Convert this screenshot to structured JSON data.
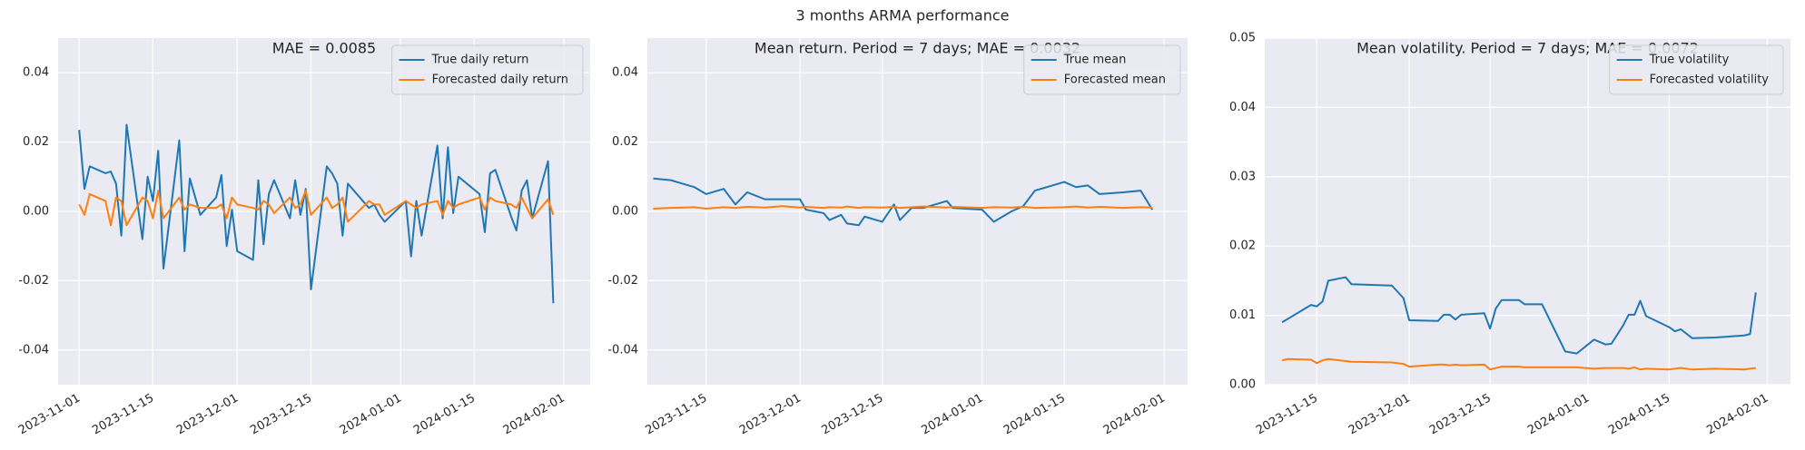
{
  "title": "3 months ARMA performance",
  "chart_data": [
    {
      "type": "line",
      "title": "MAE = 0.0085",
      "x": [
        "2023-11-01",
        "2023-11-02",
        "2023-11-03",
        "2023-11-06",
        "2023-11-07",
        "2023-11-08",
        "2023-11-09",
        "2023-11-10",
        "2023-11-13",
        "2023-11-14",
        "2023-11-15",
        "2023-11-16",
        "2023-11-17",
        "2023-11-20",
        "2023-11-21",
        "2023-11-22",
        "2023-11-24",
        "2023-11-27",
        "2023-11-28",
        "2023-11-29",
        "2023-11-30",
        "2023-12-01",
        "2023-12-04",
        "2023-12-05",
        "2023-12-06",
        "2023-12-07",
        "2023-12-08",
        "2023-12-11",
        "2023-12-12",
        "2023-12-13",
        "2023-12-14",
        "2023-12-15",
        "2023-12-18",
        "2023-12-19",
        "2023-12-20",
        "2023-12-21",
        "2023-12-22",
        "2023-12-26",
        "2023-12-27",
        "2023-12-28",
        "2023-12-29",
        "2024-01-02",
        "2024-01-03",
        "2024-01-04",
        "2024-01-05",
        "2024-01-08",
        "2024-01-09",
        "2024-01-10",
        "2024-01-11",
        "2024-01-12",
        "2024-01-16",
        "2024-01-17",
        "2024-01-18",
        "2024-01-19",
        "2024-01-22",
        "2024-01-23",
        "2024-01-24",
        "2024-01-25",
        "2024-01-26",
        "2024-01-29",
        "2024-01-30"
      ],
      "series": [
        {
          "name": "True daily return",
          "color": "#1f77b4",
          "values": [
            0.0235,
            0.0065,
            0.013,
            0.011,
            0.0115,
            0.008,
            -0.007,
            0.025,
            -0.008,
            0.01,
            0.003,
            0.0175,
            -0.0165,
            0.0205,
            -0.0115,
            0.0095,
            -0.001,
            0.004,
            0.0105,
            -0.01,
            0.0005,
            -0.0115,
            -0.014,
            0.009,
            -0.0095,
            0.005,
            0.009,
            -0.002,
            0.009,
            -0.001,
            0.0065,
            -0.0225,
            0.013,
            0.011,
            0.008,
            -0.007,
            0.008,
            0.001,
            0.002,
            -0.001,
            -0.003,
            0.003,
            -0.013,
            0.003,
            -0.007,
            0.019,
            -0.002,
            0.0185,
            -0.0005,
            0.01,
            0.005,
            -0.006,
            0.011,
            0.012,
            -0.0015,
            -0.0055,
            0.006,
            0.009,
            -0.002,
            0.0145,
            -0.0265
          ]
        },
        {
          "name": "Forecasted daily return",
          "color": "#ff7f0e",
          "values": [
            0.002,
            -0.001,
            0.005,
            0.003,
            -0.004,
            0.004,
            0.003,
            -0.004,
            0.004,
            0.003,
            -0.002,
            0.006,
            -0.002,
            0.004,
            0.0005,
            0.002,
            0.001,
            0.001,
            0.002,
            -0.002,
            0.004,
            0.002,
            0.001,
            0.0005,
            0.003,
            0.002,
            -0.0005,
            0.004,
            0.001,
            0.002,
            0.006,
            -0.001,
            0.004,
            0.001,
            0.002,
            0.004,
            -0.003,
            0.003,
            0.002,
            0.002,
            -0.001,
            0.003,
            0.002,
            0.001,
            0.002,
            0.003,
            -0.001,
            0.003,
            0.001,
            0.002,
            0.004,
            0.0005,
            0.004,
            0.003,
            0.002,
            0.001,
            0.004,
            0.001,
            -0.002,
            0.0035,
            -0.001
          ]
        }
      ],
      "xlim": [
        "2023-10-28",
        "2024-02-06"
      ],
      "xticks": [
        "2023-11-01",
        "2023-11-15",
        "2023-12-01",
        "2023-12-15",
        "2024-01-01",
        "2024-01-15",
        "2024-02-01"
      ],
      "ylim": [
        -0.05,
        0.05
      ],
      "yticks": [
        -0.04,
        -0.02,
        {
          "value": 0,
          "label": "0.00"
        },
        0.02,
        0.04
      ],
      "grid": true,
      "legend": "upper right"
    },
    {
      "type": "line",
      "title": "Mean return. Period = 7 days; MAE = 0.0032",
      "x": [
        "2023-11-06",
        "2023-11-09",
        "2023-11-13",
        "2023-11-15",
        "2023-11-18",
        "2023-11-20",
        "2023-11-22",
        "2023-11-25",
        "2023-11-28",
        "2023-12-01",
        "2023-12-02",
        "2023-12-05",
        "2023-12-06",
        "2023-12-08",
        "2023-12-09",
        "2023-12-11",
        "2023-12-12",
        "2023-12-15",
        "2023-12-17",
        "2023-12-18",
        "2023-12-20",
        "2023-12-22",
        "2023-12-26",
        "2023-12-27",
        "2024-01-01",
        "2024-01-03",
        "2024-01-06",
        "2024-01-08",
        "2024-01-10",
        "2024-01-15",
        "2024-01-17",
        "2024-01-19",
        "2024-01-21",
        "2024-01-25",
        "2024-01-28",
        "2024-01-30"
      ],
      "series": [
        {
          "name": "True mean",
          "color": "#1f77b4",
          "values": [
            0.0095,
            0.009,
            0.007,
            0.005,
            0.0065,
            0.002,
            0.0055,
            0.0035,
            0.0035,
            0.0035,
            0.0005,
            -0.0005,
            -0.0025,
            -0.001,
            -0.0035,
            -0.004,
            -0.0015,
            -0.003,
            0.002,
            -0.0025,
            0.001,
            0.001,
            0.003,
            0.001,
            0.0005,
            -0.003,
            0.0,
            0.0015,
            0.006,
            0.0085,
            0.007,
            0.0075,
            0.005,
            0.0055,
            0.006,
            0.0005
          ]
        },
        {
          "name": "Forecasted mean",
          "color": "#ff7f0e",
          "values": [
            0.0008,
            0.001,
            0.0012,
            0.0008,
            0.0012,
            0.001,
            0.0013,
            0.0011,
            0.0015,
            0.0011,
            0.0013,
            0.001,
            0.0012,
            0.0011,
            0.0014,
            0.001,
            0.0012,
            0.0011,
            0.0013,
            0.001,
            0.0012,
            0.0014,
            0.0011,
            0.0013,
            0.001,
            0.0012,
            0.0011,
            0.0013,
            0.001,
            0.0012,
            0.0014,
            0.0011,
            0.0013,
            0.001,
            0.0012,
            0.0011
          ]
        }
      ],
      "xlim": [
        "2023-11-05",
        "2024-02-05"
      ],
      "xticks": [
        "2023-11-15",
        "2023-12-01",
        "2023-12-15",
        "2024-01-01",
        "2024-01-15",
        "2024-02-01"
      ],
      "ylim": [
        -0.05,
        0.05
      ],
      "yticks": [
        -0.04,
        -0.02,
        {
          "value": 0,
          "label": "0.00"
        },
        0.02,
        0.04
      ],
      "grid": true,
      "legend": "upper right"
    },
    {
      "type": "line",
      "title": "Mean volatility. Period = 7 days; MAE = 0.0072",
      "x": [
        "2023-11-09",
        "2023-11-10",
        "2023-11-14",
        "2023-11-15",
        "2023-11-16",
        "2023-11-17",
        "2023-11-20",
        "2023-11-21",
        "2023-11-28",
        "2023-11-30",
        "2023-12-01",
        "2023-12-06",
        "2023-12-07",
        "2023-12-08",
        "2023-12-09",
        "2023-12-10",
        "2023-12-14",
        "2023-12-15",
        "2023-12-16",
        "2023-12-17",
        "2023-12-20",
        "2023-12-21",
        "2023-12-24",
        "2023-12-28",
        "2023-12-30",
        "2024-01-02",
        "2024-01-04",
        "2024-01-05",
        "2024-01-07",
        "2024-01-08",
        "2024-01-09",
        "2024-01-10",
        "2024-01-11",
        "2024-01-15",
        "2024-01-16",
        "2024-01-17",
        "2024-01-19",
        "2024-01-23",
        "2024-01-28",
        "2024-01-29",
        "2024-01-30"
      ],
      "series": [
        {
          "name": "True volatility",
          "color": "#1f77b4",
          "values": [
            0.009,
            0.0095,
            0.0115,
            0.0113,
            0.012,
            0.015,
            0.0155,
            0.0145,
            0.0143,
            0.0125,
            0.0093,
            0.0092,
            0.0101,
            0.0101,
            0.0094,
            0.0101,
            0.0103,
            0.0081,
            0.011,
            0.0122,
            0.0122,
            0.0116,
            0.0116,
            0.0048,
            0.0045,
            0.0065,
            0.0058,
            0.0059,
            0.0085,
            0.0101,
            0.0101,
            0.0121,
            0.0099,
            0.0083,
            0.0077,
            0.008,
            0.0067,
            0.0068,
            0.0071,
            0.0073,
            0.0133
          ]
        },
        {
          "name": "Forecasted volatility",
          "color": "#ff7f0e",
          "values": [
            0.0035,
            0.0037,
            0.0036,
            0.0031,
            0.0035,
            0.0037,
            0.0034,
            0.0033,
            0.0032,
            0.003,
            0.0026,
            0.0029,
            0.0029,
            0.0028,
            0.0029,
            0.0028,
            0.0029,
            0.0022,
            0.0024,
            0.0026,
            0.0026,
            0.0025,
            0.0025,
            0.0025,
            0.0025,
            0.0023,
            0.0024,
            0.0024,
            0.0024,
            0.0023,
            0.0025,
            0.0022,
            0.0023,
            0.0022,
            0.0023,
            0.0024,
            0.0022,
            0.0023,
            0.0022,
            0.0023,
            0.0024
          ]
        }
      ],
      "xlim": [
        "2023-11-06",
        "2024-02-05"
      ],
      "xticks": [
        "2023-11-15",
        "2023-12-01",
        "2023-12-15",
        "2024-01-01",
        "2024-01-15",
        "2024-02-01"
      ],
      "ylim": [
        0,
        0.05
      ],
      "yticks": [
        {
          "value": 0,
          "label": "0.00"
        },
        0.01,
        0.02,
        0.03,
        0.04,
        0.05
      ],
      "grid": true,
      "legend": "upper right"
    }
  ]
}
